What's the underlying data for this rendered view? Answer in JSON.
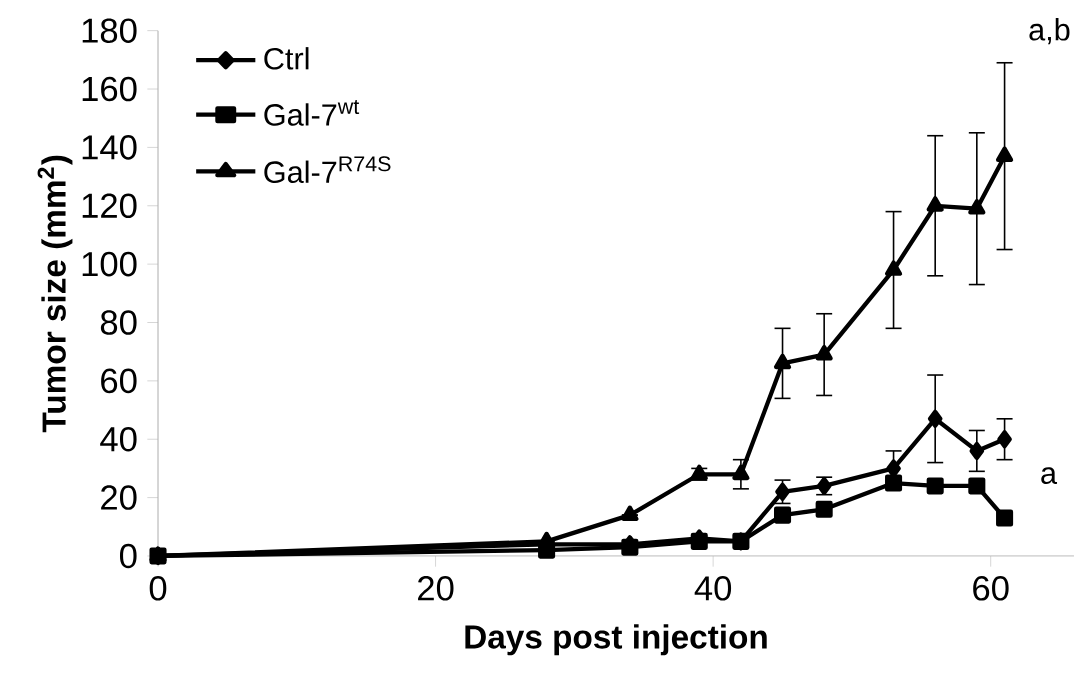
{
  "chart_data": {
    "type": "line",
    "xlabel": "Days post injection",
    "ylabel": "Tumor size (mm$^{2}$)",
    "xlim": [
      0,
      66
    ],
    "xticks": [
      0,
      20,
      40,
      60
    ],
    "ylim": [
      0,
      180
    ],
    "yticks": [
      0,
      20,
      40,
      60,
      80,
      100,
      120,
      140,
      160,
      180
    ],
    "grid": false,
    "legend": "top left",
    "line_style": "solid",
    "series": [
      {
        "name": "Ctrl",
        "color": "#000000",
        "marker": "diamond",
        "x": [
          0,
          28,
          34,
          39,
          42,
          45,
          48,
          53,
          56,
          59,
          61
        ],
        "values": [
          0,
          4,
          4,
          6,
          5,
          22,
          24,
          30,
          47,
          36,
          40
        ],
        "errors": [
          null,
          null,
          null,
          null,
          null,
          4,
          3,
          6,
          15,
          7,
          7
        ]
      },
      {
        "name": "Gal-7$^{wt}$",
        "color": "#000000",
        "marker": "square",
        "x": [
          0,
          28,
          34,
          39,
          42,
          45,
          48,
          53,
          56,
          59,
          61
        ],
        "values": [
          0,
          2,
          3,
          5,
          5,
          14,
          16,
          25,
          24,
          24,
          13
        ]
      },
      {
        "name": "Gal-7$^{R74S}$",
        "color": "#000000",
        "marker": "triangle",
        "x": [
          0,
          28,
          34,
          39,
          42,
          45,
          48,
          53,
          56,
          59,
          61
        ],
        "values": [
          0,
          5,
          14,
          28,
          28,
          66,
          69,
          98,
          120,
          119,
          137
        ],
        "errors": [
          null,
          null,
          null,
          2,
          5,
          12,
          14,
          20,
          24,
          26,
          32
        ]
      }
    ],
    "annotations": [
      "a,b",
      "a"
    ]
  }
}
